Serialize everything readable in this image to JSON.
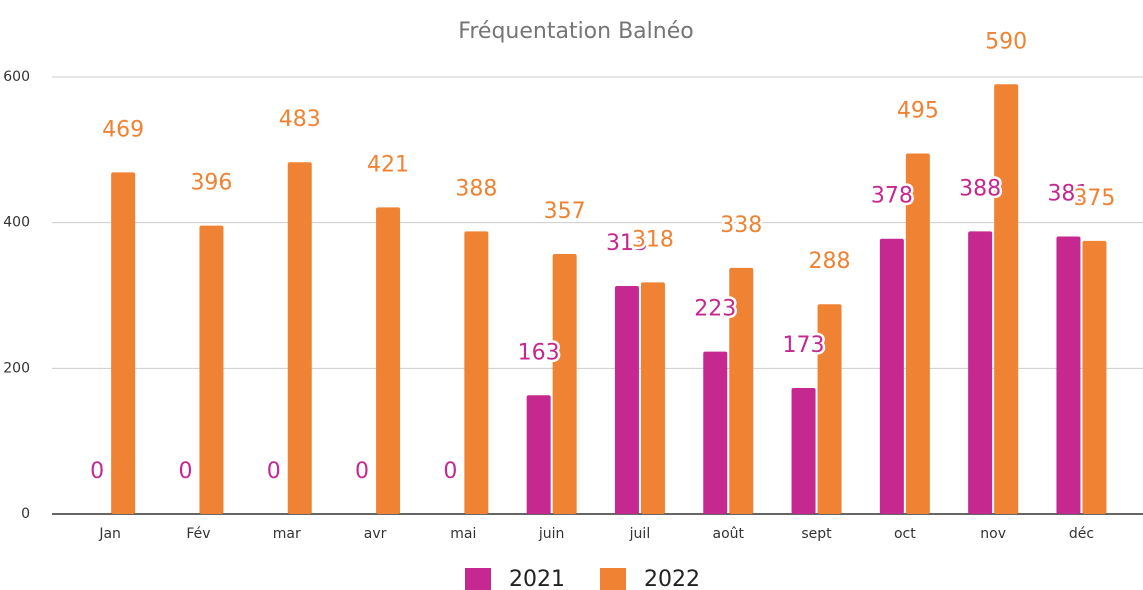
{
  "chart_data": {
    "type": "bar",
    "title": "Fréquentation Balnéo",
    "categories": [
      "Jan",
      "Fév",
      "mar",
      "avr",
      "mai",
      "juin",
      "juil",
      "août",
      "sept",
      "oct",
      "nov",
      "déc"
    ],
    "series": [
      {
        "name": "2021",
        "color": "#c5288f",
        "values": [
          0,
          0,
          0,
          0,
          0,
          163,
          313,
          223,
          173,
          378,
          388,
          381
        ]
      },
      {
        "name": "2022",
        "color": "#ef8233",
        "values": [
          469,
          396,
          483,
          421,
          388,
          357,
          318,
          338,
          288,
          495,
          590,
          375
        ]
      }
    ],
    "ylim": [
      0,
      600
    ],
    "yticks": [
      0,
      200,
      400,
      600
    ],
    "grid": true,
    "legend": "bottom"
  }
}
